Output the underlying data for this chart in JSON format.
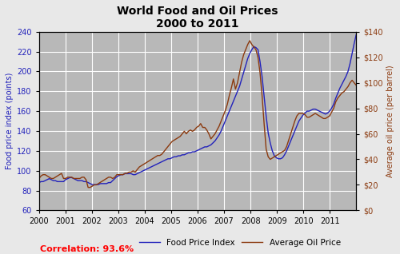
{
  "title": "World Food and Oil Prices\n2000 to 2011",
  "ylabel_left": "Food price index (points)",
  "ylabel_right": "Average oil price (per barrel)",
  "food_color": "#2222BB",
  "oil_color": "#8B3A0F",
  "background_color": "#B8B8B8",
  "fig_facecolor": "#E8E8E8",
  "ylim_left": [
    60,
    240
  ],
  "ylim_right": [
    0,
    140
  ],
  "yticks_left": [
    60,
    80,
    100,
    120,
    140,
    160,
    180,
    200,
    220,
    240
  ],
  "yticks_right": [
    0,
    20,
    40,
    60,
    80,
    100,
    120,
    140
  ],
  "correlation_text": "Correlation: 93.6%",
  "correlation_color": "#FF0000",
  "legend_items": [
    "Food Price Index",
    "Average Oil Price"
  ],
  "food_price_index": [
    88,
    89,
    89,
    90,
    91,
    92,
    91,
    90,
    90,
    89,
    89,
    89,
    89,
    91,
    92,
    93,
    93,
    92,
    91,
    90,
    90,
    90,
    89,
    89,
    88,
    87,
    86,
    86,
    86,
    86,
    87,
    87,
    87,
    87,
    88,
    88,
    90,
    92,
    94,
    95,
    96,
    96,
    97,
    97,
    97,
    97,
    96,
    96,
    97,
    98,
    99,
    100,
    101,
    102,
    103,
    104,
    105,
    106,
    107,
    108,
    109,
    110,
    111,
    112,
    112,
    113,
    114,
    114,
    115,
    115,
    116,
    116,
    117,
    118,
    118,
    119,
    119,
    120,
    121,
    122,
    123,
    124,
    124,
    125,
    126,
    128,
    130,
    133,
    136,
    140,
    145,
    150,
    155,
    160,
    165,
    170,
    175,
    180,
    185,
    192,
    199,
    206,
    213,
    218,
    222,
    225,
    224,
    222,
    210,
    195,
    175,
    155,
    138,
    128,
    120,
    115,
    113,
    112,
    112,
    113,
    116,
    120,
    125,
    130,
    135,
    140,
    145,
    150,
    153,
    156,
    158,
    160,
    160,
    161,
    162,
    162,
    161,
    160,
    159,
    158,
    157,
    158,
    160,
    163,
    167,
    173,
    178,
    183,
    187,
    191,
    195,
    200,
    208,
    218,
    228,
    237
  ],
  "avg_oil_price": [
    25,
    27,
    28,
    28,
    27,
    26,
    25,
    25,
    26,
    27,
    28,
    29,
    25,
    25,
    26,
    26,
    26,
    25,
    25,
    25,
    25,
    26,
    26,
    24,
    18,
    18,
    19,
    20,
    20,
    21,
    22,
    23,
    24,
    25,
    26,
    26,
    25,
    26,
    28,
    28,
    28,
    28,
    29,
    29,
    30,
    30,
    31,
    30,
    32,
    34,
    35,
    36,
    37,
    38,
    39,
    40,
    41,
    42,
    43,
    43,
    44,
    46,
    48,
    50,
    52,
    54,
    55,
    56,
    57,
    58,
    60,
    62,
    60,
    62,
    63,
    62,
    63,
    65,
    66,
    68,
    65,
    65,
    63,
    60,
    56,
    58,
    60,
    63,
    66,
    70,
    74,
    78,
    83,
    90,
    96,
    103,
    95,
    100,
    108,
    116,
    122,
    126,
    130,
    133,
    130,
    128,
    126,
    120,
    108,
    90,
    68,
    48,
    42,
    40,
    41,
    42,
    43,
    44,
    45,
    46,
    47,
    50,
    55,
    60,
    65,
    70,
    74,
    76,
    76,
    76,
    75,
    73,
    73,
    74,
    75,
    76,
    75,
    74,
    73,
    72,
    72,
    73,
    74,
    77,
    80,
    85,
    88,
    90,
    92,
    93,
    95,
    97,
    100,
    102,
    100,
    98
  ],
  "xtick_years": [
    2000,
    2001,
    2002,
    2003,
    2004,
    2005,
    2006,
    2007,
    2008,
    2009,
    2010,
    2011
  ]
}
